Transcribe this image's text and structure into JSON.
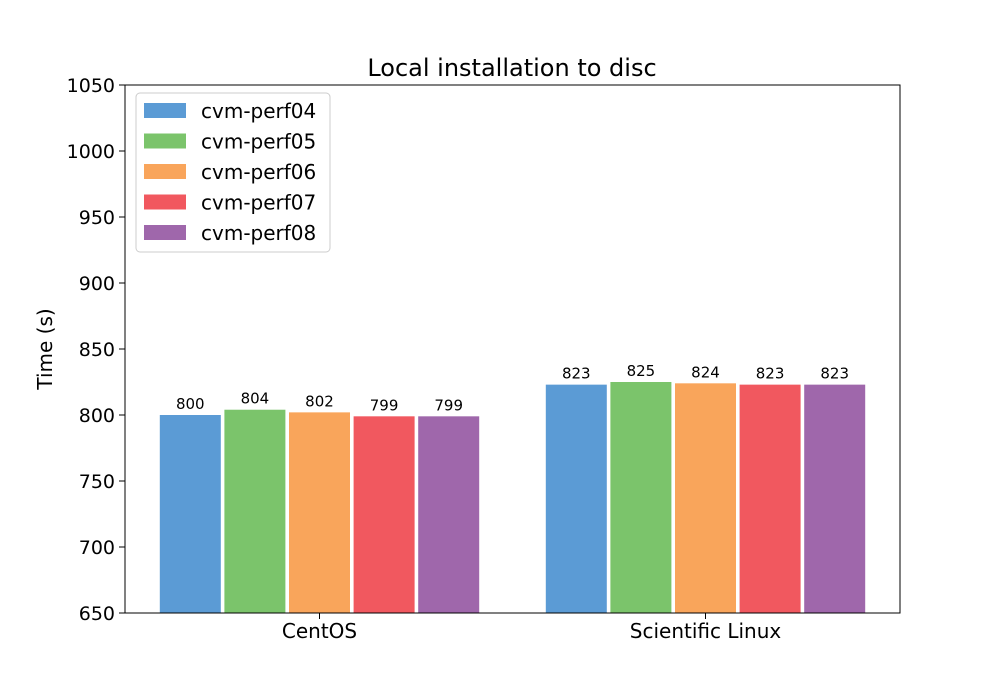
{
  "chart_data": {
    "type": "bar",
    "title": "Local installation to disc",
    "xlabel": "",
    "ylabel": "Time (s)",
    "ylim": [
      650,
      1050
    ],
    "yticks": [
      "650",
      "700",
      "750",
      "800",
      "850",
      "900",
      "950",
      "1000",
      "1050"
    ],
    "categories": [
      "CentOS",
      "Scientific Linux"
    ],
    "grid": false,
    "legend_position": "top-left",
    "series": [
      {
        "name": "cvm-perf04",
        "color": "#5b9bd5",
        "values": [
          800,
          823
        ]
      },
      {
        "name": "cvm-perf05",
        "color": "#7bc46b",
        "values": [
          804,
          825
        ]
      },
      {
        "name": "cvm-perf06",
        "color": "#f9a55b",
        "values": [
          802,
          824
        ]
      },
      {
        "name": "cvm-perf07",
        "color": "#f1585f",
        "values": [
          799,
          823
        ]
      },
      {
        "name": "cvm-perf08",
        "color": "#9f67ab",
        "values": [
          799,
          823
        ]
      }
    ]
  }
}
